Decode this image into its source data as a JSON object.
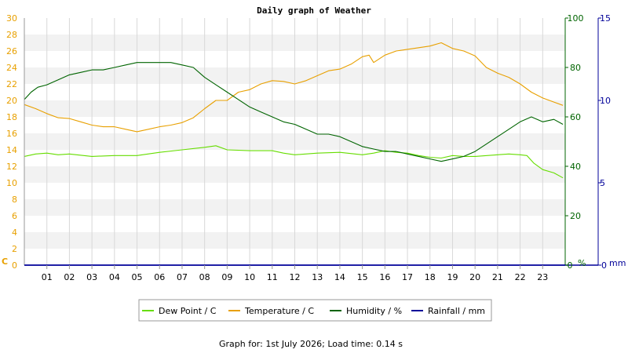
{
  "chart_data": {
    "type": "line",
    "title": "Daily graph of Weather",
    "x_ticks": [
      "01",
      "02",
      "03",
      "04",
      "05",
      "06",
      "07",
      "08",
      "09",
      "10",
      "11",
      "12",
      "13",
      "14",
      "15",
      "16",
      "17",
      "18",
      "19",
      "20",
      "21",
      "22",
      "23"
    ],
    "xlim": [
      0,
      24
    ],
    "axes": {
      "temperature": {
        "unit": "C",
        "min": 0,
        "max": 30,
        "step": 2,
        "color": "#e8a000",
        "side": "left"
      },
      "humidity": {
        "unit": "%",
        "min": 0,
        "max": 100,
        "step": 20,
        "color": "#006400",
        "side": "right"
      },
      "rainfall": {
        "unit": "mm",
        "min": 0,
        "max": 15,
        "step": 5,
        "color": "#000099",
        "side": "right"
      }
    },
    "grid": true,
    "legend_position": "bottom",
    "series": [
      {
        "name": "Dew Point / C",
        "axis": "temperature",
        "color": "#66dd00",
        "x": [
          0,
          0.5,
          1,
          1.5,
          2,
          3,
          4,
          5,
          6,
          7,
          8,
          8.5,
          9,
          10,
          11,
          11.5,
          12,
          13,
          14,
          15,
          15.5,
          16,
          16.5,
          17,
          17.5,
          18,
          18.5,
          19,
          19.5,
          20,
          21,
          21.5,
          22,
          22.3,
          22.6,
          23,
          23.5,
          23.9
        ],
        "values": [
          13.2,
          13.5,
          13.6,
          13.4,
          13.5,
          13.2,
          13.3,
          13.3,
          13.7,
          14.0,
          14.3,
          14.5,
          14.0,
          13.9,
          13.9,
          13.6,
          13.4,
          13.6,
          13.7,
          13.4,
          13.6,
          13.9,
          13.7,
          13.6,
          13.3,
          13.1,
          13.0,
          13.3,
          13.2,
          13.2,
          13.4,
          13.5,
          13.4,
          13.3,
          12.4,
          11.6,
          11.2,
          10.6
        ]
      },
      {
        "name": "Temperature / C",
        "axis": "temperature",
        "color": "#e8a000",
        "x": [
          0,
          0.5,
          1,
          1.5,
          2,
          2.5,
          3,
          3.5,
          4,
          4.5,
          5,
          5.5,
          6,
          6.5,
          7,
          7.5,
          8,
          8.5,
          9,
          9.5,
          10,
          10.5,
          11,
          11.5,
          12,
          12.5,
          13,
          13.5,
          14,
          14.5,
          15,
          15.3,
          15.5,
          16,
          16.5,
          17,
          17.5,
          18,
          18.5,
          19,
          19.5,
          20,
          20.5,
          21,
          21.5,
          22,
          22.5,
          23,
          23.5,
          23.9
        ],
        "values": [
          19.5,
          19.0,
          18.4,
          17.9,
          17.8,
          17.4,
          17.0,
          16.8,
          16.8,
          16.5,
          16.2,
          16.5,
          16.8,
          17.0,
          17.3,
          17.9,
          19.0,
          20.0,
          20.0,
          21.0,
          21.3,
          22.0,
          22.4,
          22.3,
          22.0,
          22.4,
          23.0,
          23.6,
          23.8,
          24.4,
          25.3,
          25.5,
          24.6,
          25.5,
          26.0,
          26.2,
          26.4,
          26.6,
          27.0,
          26.3,
          26.0,
          25.4,
          24.0,
          23.3,
          22.8,
          22.0,
          21.0,
          20.3,
          19.8,
          19.4
        ]
      },
      {
        "name": "Humidity / %",
        "axis": "humidity",
        "color": "#006400",
        "x": [
          0,
          0.3,
          0.6,
          1,
          1.5,
          2,
          2.5,
          3,
          3.5,
          4,
          4.5,
          5,
          5.5,
          6,
          6.5,
          7,
          7.5,
          8,
          8.5,
          9,
          9.5,
          10,
          10.5,
          11,
          11.5,
          12,
          12.5,
          13,
          13.5,
          14,
          14.5,
          15,
          15.5,
          16,
          16.5,
          17,
          17.5,
          18,
          18.5,
          19,
          19.5,
          20,
          20.5,
          21,
          21.5,
          22,
          22.5,
          23,
          23.5,
          23.9
        ],
        "values": [
          67,
          70,
          72,
          73,
          75,
          77,
          78,
          79,
          79,
          80,
          81,
          82,
          82,
          82,
          82,
          81,
          80,
          76,
          73,
          70,
          67,
          64,
          62,
          60,
          58,
          57,
          55,
          53,
          53,
          52,
          50,
          48,
          47,
          46,
          46,
          45,
          44,
          43,
          42,
          43,
          44,
          46,
          49,
          52,
          55,
          58,
          60,
          58,
          59,
          57
        ]
      },
      {
        "name": "Rainfall / mm",
        "axis": "rainfall",
        "color": "#000099",
        "x": [
          0,
          24
        ],
        "values": [
          0,
          0
        ]
      }
    ],
    "footer": "Graph for: 1st July 2026; Load time: 0.14 s"
  }
}
